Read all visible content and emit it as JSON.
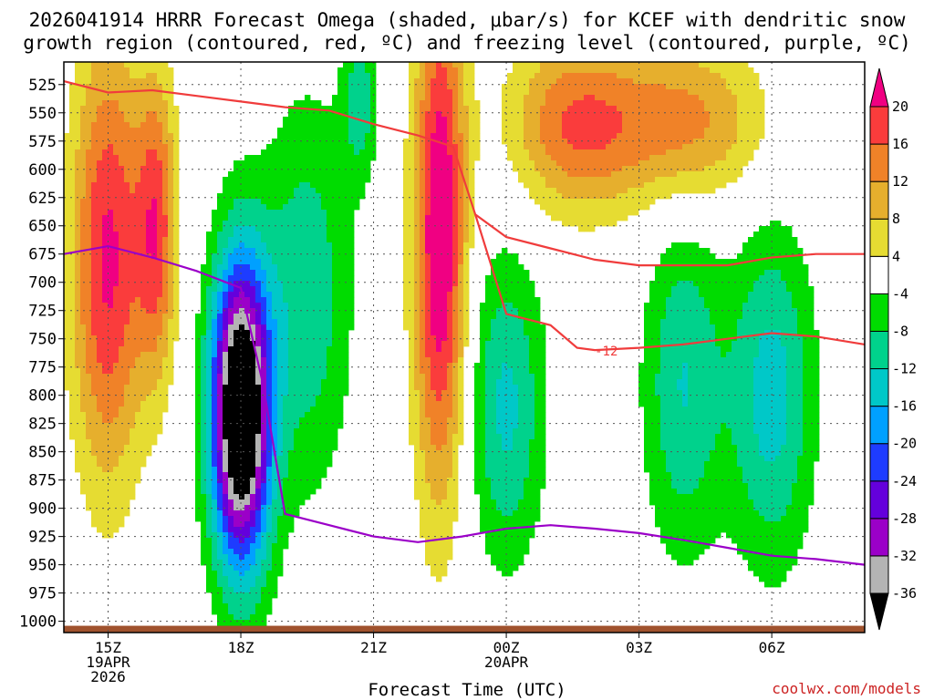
{
  "chart_data": {
    "type": "heatmap",
    "title_line1": "2026041914 HRRR Forecast Omega (shaded, μbar/s) for KCEF with dendritic snow",
    "title_line2": "growth region (contoured, red, ºC) and freezing level (contoured, purple, ºC)",
    "xlabel": "Forecast Time (UTC)",
    "credit": "coolwx.com/models",
    "x_range_hours": [
      14.0,
      32.1
    ],
    "x_ticks": [
      {
        "hour": 15,
        "label": "15Z",
        "sub1": "19APR",
        "sub2": "2026"
      },
      {
        "hour": 18,
        "label": "18Z",
        "sub1": "",
        "sub2": ""
      },
      {
        "hour": 21,
        "label": "21Z",
        "sub1": "",
        "sub2": ""
      },
      {
        "hour": 24,
        "label": "00Z",
        "sub1": "20APR",
        "sub2": ""
      },
      {
        "hour": 27,
        "label": "03Z",
        "sub1": "",
        "sub2": ""
      },
      {
        "hour": 30,
        "label": "06Z",
        "sub1": "",
        "sub2": ""
      }
    ],
    "y_ticks": [
      {
        "p": 525,
        "label": "525"
      },
      {
        "p": 550,
        "label": "550"
      },
      {
        "p": 575,
        "label": "575"
      },
      {
        "p": 600,
        "label": "600"
      },
      {
        "p": 625,
        "label": "625"
      },
      {
        "p": 650,
        "label": "650"
      },
      {
        "p": 675,
        "label": "675"
      },
      {
        "p": 700,
        "label": "700"
      },
      {
        "p": 725,
        "label": "725"
      },
      {
        "p": 750,
        "label": "750"
      },
      {
        "p": 775,
        "label": "775"
      },
      {
        "p": 800,
        "label": "800"
      },
      {
        "p": 825,
        "label": "825"
      },
      {
        "p": 850,
        "label": "850"
      },
      {
        "p": 875,
        "label": "875"
      },
      {
        "p": 900,
        "label": "900"
      },
      {
        "p": 925,
        "label": "925"
      },
      {
        "p": 950,
        "label": "950"
      },
      {
        "p": 975,
        "label": "975"
      },
      {
        "p": 1000,
        "label": "1000"
      }
    ],
    "y_range_hpa": [
      505,
      1010
    ],
    "colorbar": {
      "levels": [
        -36,
        -32,
        -28,
        -24,
        -20,
        -16,
        -12,
        -8,
        -4,
        4,
        8,
        12,
        16,
        20
      ],
      "labels": [
        "-36",
        "-32",
        "-28",
        "-24",
        "-20",
        "-16",
        "-12",
        "-8",
        "-4",
        "4",
        "8",
        "12",
        "16",
        "20"
      ],
      "colors": [
        "#000000",
        "#b4b4b4",
        "#9b00c8",
        "#6400dc",
        "#1e3cff",
        "#00a0ff",
        "#00c8c8",
        "#00d28c",
        "#00dc00",
        "#ffffff",
        "#e6dc32",
        "#e6af2d",
        "#f08228",
        "#fa3c3c",
        "#f00082"
      ]
    },
    "dendritic_label": "-12",
    "omega_features": [
      {
        "name": "morning-ascent-core",
        "hour": 18.0,
        "p": 815,
        "width_h": 1.5,
        "depth_hpa": 300,
        "peak": -48
      },
      {
        "name": "afternoon-ascent",
        "hour": 19.5,
        "p": 710,
        "width_h": 2.2,
        "depth_hpa": 380,
        "peak": -11
      },
      {
        "name": "upper-ascent",
        "hour": 20.7,
        "p": 540,
        "width_h": 0.9,
        "depth_hpa": 150,
        "peak": -10
      },
      {
        "name": "overnight-ascent-1",
        "hour": 24.0,
        "p": 810,
        "width_h": 1.9,
        "depth_hpa": 300,
        "peak": -13
      },
      {
        "name": "overnight-ascent-2",
        "hour": 28.0,
        "p": 790,
        "width_h": 2.0,
        "depth_hpa": 330,
        "peak": -12
      },
      {
        "name": "overnight-ascent-3",
        "hour": 30.0,
        "p": 800,
        "width_h": 2.1,
        "depth_hpa": 330,
        "peak": -14
      },
      {
        "name": "morning-descent",
        "hour": 15.0,
        "p": 680,
        "width_h": 1.8,
        "depth_hpa": 420,
        "peak": 21
      },
      {
        "name": "midday-descent",
        "hour": 16.1,
        "p": 650,
        "width_h": 1.0,
        "depth_hpa": 290,
        "peak": 17
      },
      {
        "name": "evening-descent",
        "hour": 22.5,
        "p": 660,
        "width_h": 1.3,
        "depth_hpa": 500,
        "peak": 25
      },
      {
        "name": "late-descent-upper",
        "hour": 25.5,
        "p": 560,
        "width_h": 3.2,
        "depth_hpa": 170,
        "peak": 15
      },
      {
        "name": "early-morning-descent",
        "hour": 28.0,
        "p": 560,
        "width_h": 4.0,
        "depth_hpa": 160,
        "peak": 14
      }
    ],
    "freezing_level": {
      "hour": [
        14,
        15,
        16,
        17,
        18,
        18.5,
        19,
        20,
        21,
        22,
        23,
        24,
        25,
        26,
        27,
        28,
        29,
        30,
        31,
        32.1
      ],
      "p": [
        675,
        668,
        678,
        690,
        705,
        790,
        905,
        915,
        925,
        930,
        925,
        918,
        915,
        918,
        922,
        928,
        935,
        942,
        945,
        950
      ]
    },
    "dgz_top": {
      "hour": [
        14,
        15,
        16,
        17,
        18,
        19,
        20,
        21,
        22,
        22.8,
        23.3,
        24,
        25,
        26,
        27,
        28,
        29,
        30,
        31,
        32.1
      ],
      "p": [
        522,
        532,
        530,
        535,
        540,
        545,
        548,
        560,
        570,
        580,
        640,
        660,
        670,
        680,
        685,
        685,
        685,
        678,
        675,
        675
      ]
    },
    "dgz_bottom": {
      "hour": [
        23.3,
        24,
        25,
        25.6,
        26,
        27,
        28,
        29,
        30,
        31,
        32.1
      ],
      "p": [
        640,
        728,
        738,
        758,
        760,
        758,
        755,
        750,
        745,
        748,
        755
      ]
    }
  }
}
